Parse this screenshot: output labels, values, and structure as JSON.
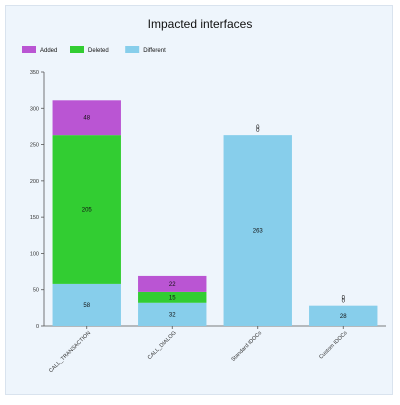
{
  "chart_data": {
    "type": "bar",
    "stacked": true,
    "title": "Impacted interfaces",
    "xlabel": "",
    "ylabel": "",
    "ylim": [
      0,
      350
    ],
    "yticks": [
      0,
      50,
      100,
      150,
      200,
      250,
      300,
      350
    ],
    "grid": false,
    "legend_position": "top-left",
    "categories": [
      "CALL_TRANSACTION",
      "CALL_DIALOG",
      "Standard IDOCs",
      "Custom IDOCs"
    ],
    "series": [
      {
        "name": "Different",
        "color": "#87ceeb",
        "values": [
          58,
          32,
          263,
          28
        ]
      },
      {
        "name": "Deleted",
        "color": "#32cd32",
        "values": [
          205,
          15,
          0,
          0
        ]
      },
      {
        "name": "Added",
        "color": "#ba55d3",
        "values": [
          48,
          22,
          0,
          0
        ]
      }
    ],
    "legend_order": [
      "Added",
      "Deleted",
      "Different"
    ]
  }
}
